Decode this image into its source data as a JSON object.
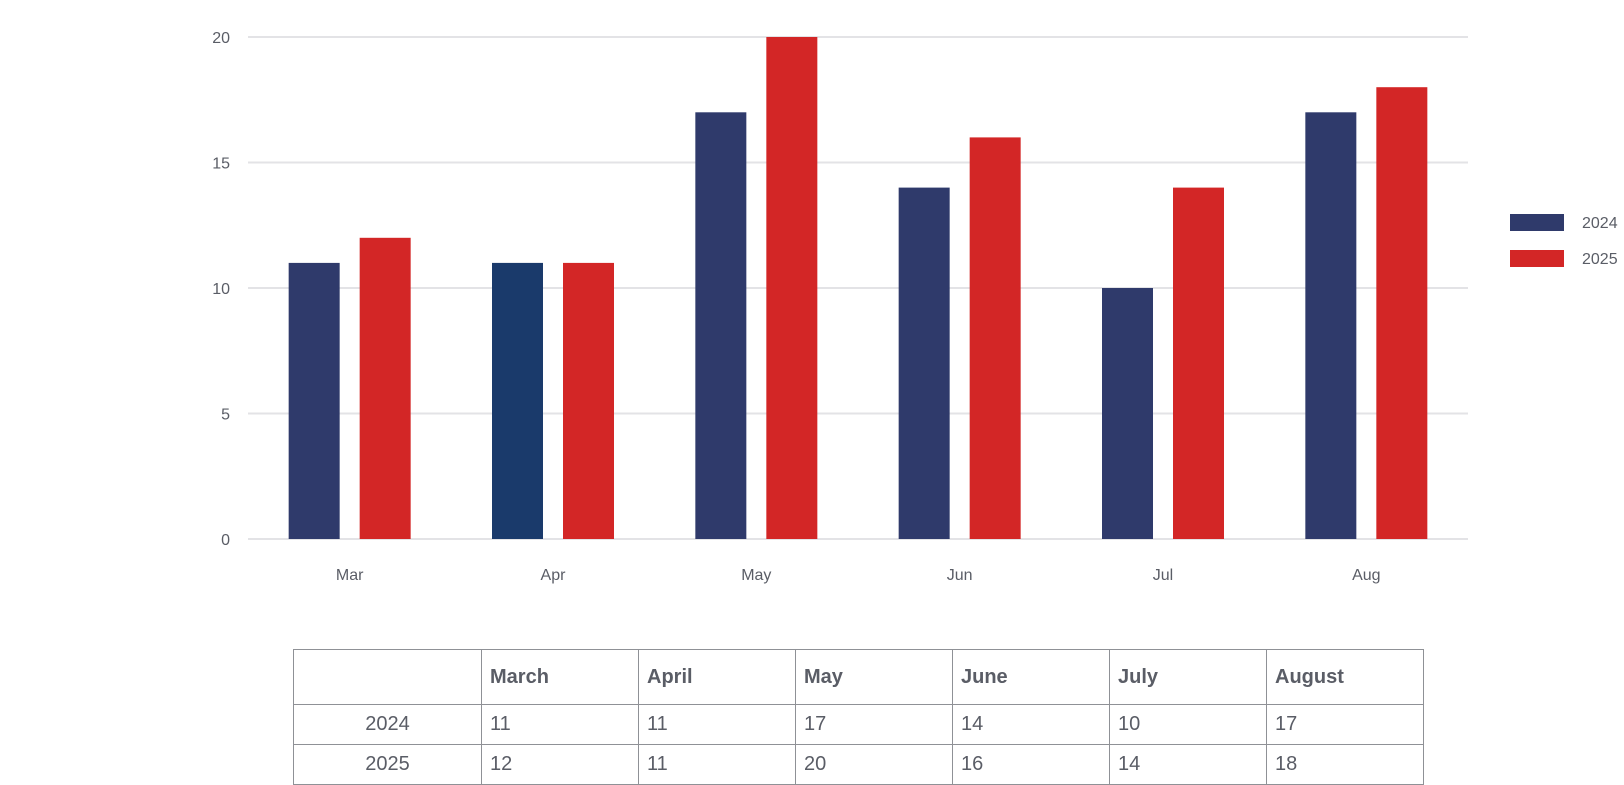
{
  "chart_data": {
    "type": "bar",
    "categories": [
      "Mar",
      "Apr",
      "May",
      "Jun",
      "Jul",
      "Aug"
    ],
    "series": [
      {
        "name": "2024",
        "color": "#2f3a6b",
        "values": [
          11,
          11,
          17,
          14,
          10,
          17
        ]
      },
      {
        "name": "2025",
        "color": "#d32626",
        "values": [
          12,
          11,
          20,
          16,
          14,
          18
        ]
      }
    ],
    "bar_color_overrides": [
      {
        "series": 0,
        "category": 1,
        "color": "#1a3a6b"
      }
    ],
    "yticks": [
      "0",
      "5",
      "10",
      "15",
      "20"
    ],
    "ylim": [
      0,
      20
    ],
    "grid": true,
    "legend_position": "right",
    "title": "",
    "xlabel": "",
    "ylabel": ""
  },
  "table": {
    "corner": "",
    "columns": [
      "March",
      "April",
      "May",
      "June",
      "July",
      "August"
    ],
    "rows": [
      {
        "label": "2024",
        "values": [
          "11",
          "11",
          "17",
          "14",
          "10",
          "17"
        ]
      },
      {
        "label": "2025",
        "values": [
          "12",
          "11",
          "20",
          "16",
          "14",
          "18"
        ]
      }
    ]
  }
}
